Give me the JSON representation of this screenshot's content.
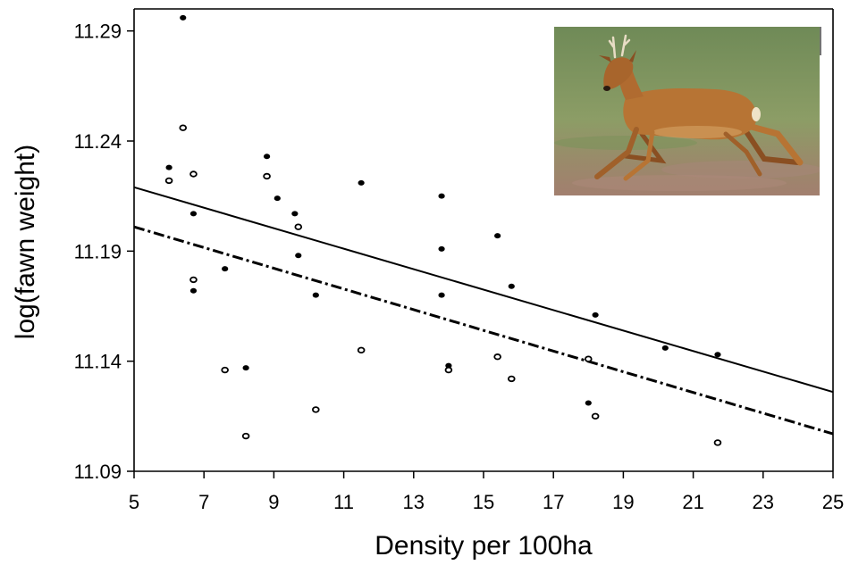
{
  "chart_data": {
    "type": "scatter",
    "title": "",
    "xlabel": "Density per 100ha",
    "ylabel": "log(fawn weight)",
    "xlim": [
      5,
      25
    ],
    "ylim": [
      11.09,
      11.31
    ],
    "x_ticks": [
      5,
      7,
      9,
      11,
      13,
      15,
      17,
      19,
      21,
      23,
      25
    ],
    "y_ticks": [
      11.09,
      11.14,
      11.19,
      11.24,
      11.29
    ],
    "x_tick_labels": [
      "5",
      "7",
      "9",
      "11",
      "13",
      "15",
      "17",
      "19",
      "21",
      "23",
      "25"
    ],
    "y_tick_labels": [
      "11.09",
      "11.14",
      "11.19",
      "11.24",
      "11.29"
    ],
    "grid": false,
    "series": [
      {
        "marker": "filled",
        "points": [
          [
            6.4,
            11.296
          ],
          [
            6.0,
            11.228
          ],
          [
            6.7,
            11.207
          ],
          [
            6.7,
            11.172
          ],
          [
            7.6,
            11.182
          ],
          [
            8.2,
            11.137
          ],
          [
            8.8,
            11.233
          ],
          [
            9.1,
            11.214
          ],
          [
            9.6,
            11.207
          ],
          [
            9.7,
            11.188
          ],
          [
            10.2,
            11.17
          ],
          [
            11.5,
            11.221
          ],
          [
            13.8,
            11.215
          ],
          [
            13.8,
            11.191
          ],
          [
            13.8,
            11.17
          ],
          [
            14.0,
            11.138
          ],
          [
            15.4,
            11.197
          ],
          [
            15.8,
            11.174
          ],
          [
            18.0,
            11.121
          ],
          [
            18.2,
            11.161
          ],
          [
            20.2,
            11.146
          ],
          [
            21.7,
            11.143
          ]
        ]
      },
      {
        "marker": "open",
        "points": [
          [
            6.4,
            11.246
          ],
          [
            6.0,
            11.222
          ],
          [
            6.7,
            11.225
          ],
          [
            6.7,
            11.177
          ],
          [
            7.6,
            11.136
          ],
          [
            8.2,
            11.106
          ],
          [
            8.8,
            11.224
          ],
          [
            9.7,
            11.201
          ],
          [
            10.2,
            11.118
          ],
          [
            11.5,
            11.145
          ],
          [
            14.0,
            11.136
          ],
          [
            15.4,
            11.142
          ],
          [
            15.8,
            11.132
          ],
          [
            18.0,
            11.141
          ],
          [
            18.2,
            11.115
          ],
          [
            21.7,
            11.103
          ]
        ]
      }
    ],
    "lines": [
      {
        "style": "solid",
        "x": [
          5,
          25
        ],
        "y": [
          11.219,
          11.126
        ]
      },
      {
        "style": "dash-dot",
        "x": [
          5,
          25
        ],
        "y": [
          11.201,
          11.107
        ]
      }
    ],
    "colors": {
      "ink": "#000000",
      "background": "#ffffff"
    }
  },
  "photo": {
    "subject": "roe-deer-buck-running",
    "colors": {
      "grass_top": "#6f8a57",
      "grass_mid": "#8c9d66",
      "ground": "#a27f6f",
      "deer": "#b77434",
      "deer_shadow": "#8a4f22"
    }
  }
}
